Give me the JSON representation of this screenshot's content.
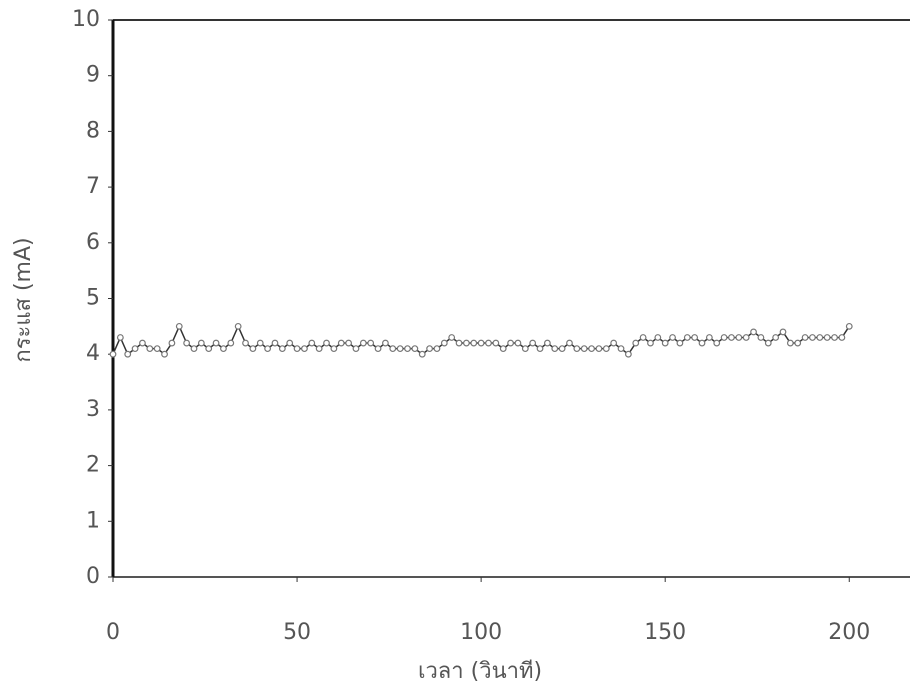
{
  "chart_data": {
    "type": "line",
    "xlabel": "เวลา (วินาที)",
    "ylabel": "กระแส (mA)",
    "x": [
      0,
      2,
      4,
      6,
      8,
      10,
      12,
      14,
      16,
      18,
      20,
      22,
      24,
      26,
      28,
      30,
      32,
      34,
      36,
      38,
      40,
      42,
      44,
      46,
      48,
      50,
      52,
      54,
      56,
      58,
      60,
      62,
      64,
      66,
      68,
      70,
      72,
      74,
      76,
      78,
      80,
      82,
      84,
      86,
      88,
      90,
      92,
      94,
      96,
      98,
      100,
      102,
      104,
      106,
      108,
      110,
      112,
      114,
      116,
      118,
      120,
      122,
      124,
      126,
      128,
      130,
      132,
      134,
      136,
      138,
      140,
      142,
      144,
      146,
      148,
      150,
      152,
      154,
      156,
      158,
      160,
      162,
      164,
      166,
      168,
      170,
      172,
      174,
      176,
      178,
      180,
      182,
      184,
      186,
      188,
      190,
      192,
      194,
      196,
      198,
      200
    ],
    "values": [
      4.0,
      4.3,
      4.0,
      4.1,
      4.2,
      4.1,
      4.1,
      4.0,
      4.2,
      4.5,
      4.2,
      4.1,
      4.2,
      4.1,
      4.2,
      4.1,
      4.2,
      4.5,
      4.2,
      4.1,
      4.2,
      4.1,
      4.2,
      4.1,
      4.2,
      4.1,
      4.1,
      4.2,
      4.1,
      4.2,
      4.1,
      4.2,
      4.2,
      4.1,
      4.2,
      4.2,
      4.1,
      4.2,
      4.1,
      4.1,
      4.1,
      4.1,
      4.0,
      4.1,
      4.1,
      4.2,
      4.3,
      4.2,
      4.2,
      4.2,
      4.2,
      4.2,
      4.2,
      4.1,
      4.2,
      4.2,
      4.1,
      4.2,
      4.1,
      4.2,
      4.1,
      4.1,
      4.2,
      4.1,
      4.1,
      4.1,
      4.1,
      4.1,
      4.2,
      4.1,
      4.0,
      4.2,
      4.3,
      4.2,
      4.3,
      4.2,
      4.3,
      4.2,
      4.3,
      4.3,
      4.2,
      4.3,
      4.2,
      4.3,
      4.3,
      4.3,
      4.3,
      4.4,
      4.3,
      4.2,
      4.3,
      4.4,
      4.2,
      4.2,
      4.3,
      4.3,
      4.3,
      4.3,
      4.3,
      4.3,
      4.5
    ],
    "color": "#333333",
    "xlim": [
      0,
      216.5
    ],
    "ylim": [
      0,
      10
    ],
    "xticks": [
      0,
      50,
      100,
      150,
      200
    ],
    "yticks": [
      0,
      1,
      2,
      3,
      4,
      5,
      6,
      7,
      8,
      9,
      10
    ],
    "grid": false
  }
}
